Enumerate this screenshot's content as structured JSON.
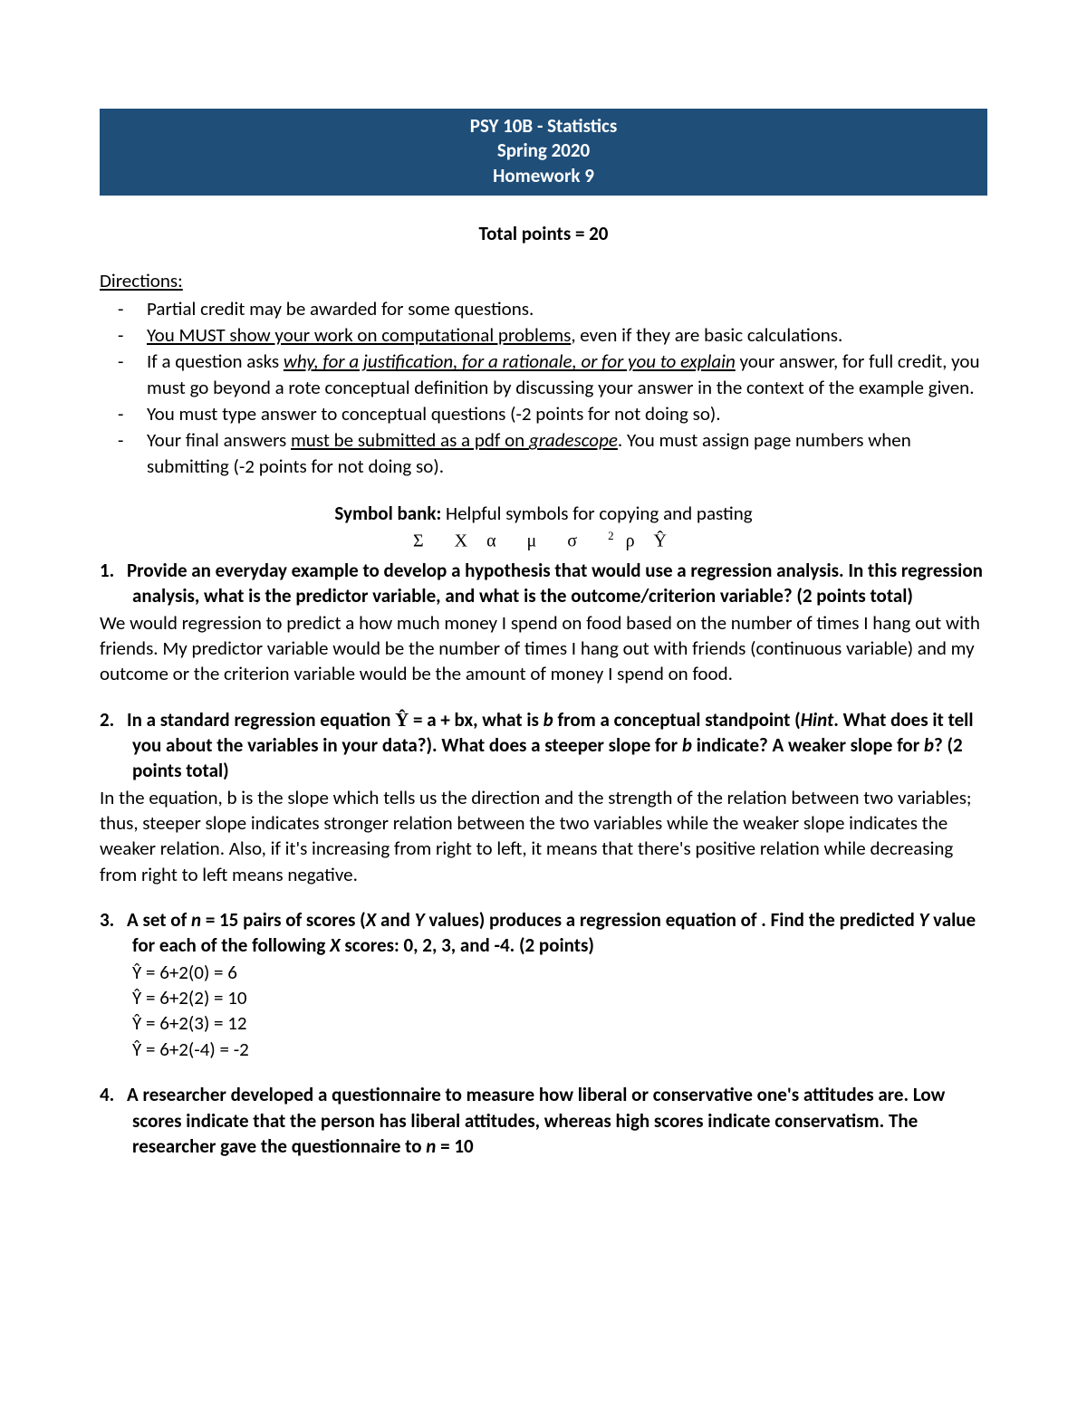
{
  "header": {
    "line1": "PSY 10B - Statistics",
    "line2": "Spring 2020",
    "line3": "Homework 9",
    "bg_color": "#1f4e79",
    "text_color": "#ffffff"
  },
  "total_points": "Total points = 20",
  "directions_heading": "Directions:",
  "directions": [
    {
      "html": "Partial credit may be awarded for some questions."
    },
    {
      "html": "<span class='u'>You MUST show your work on computational problems</span>, even if they are basic calculations."
    },
    {
      "html": "If a question asks <span class='iu'>why, for a justification, for a rationale, or for you to explain</span> your answer, for full credit, you must go beyond a rote conceptual definition by discussing your answer in the context of the example given."
    },
    {
      "html": "You must type answer to conceptual questions (-2 points for not doing so)."
    },
    {
      "html": "Your final answers <span class='u'>must be submitted as a pdf on <span class='i'>gradescope</span></span>. You must assign page numbers when submitting (-2 points for not doing so)."
    }
  ],
  "symbol_bank": {
    "label_bold": "Symbol bank:",
    "label_rest": " Helpful symbols for copying and pasting",
    "symbols_html": "Σ&nbsp;&nbsp;X&nbsp;α&nbsp;&nbsp;μ&nbsp;&nbsp;σ&nbsp;&nbsp;<span class='sup'>2</span>&nbsp;ρ&nbsp;Ŷ"
  },
  "q1": {
    "num": "1.",
    "prompt": "Provide an everyday example to develop a hypothesis that would use a regression analysis. In this regression analysis, what is the predictor variable, and what is the outcome/criterion variable? (2 points total)",
    "answer": "We would regression to predict a how much money I spend on food based on the number of times I hang out with friends. My predictor variable would be the number of times I hang out with friends (continuous variable) and my outcome or the criterion variable would be the amount of money I spend on food."
  },
  "q2": {
    "num": "2.",
    "prompt_html": "In a standard regression equation <span class='yhat'>Ŷ</span> = a + bx, what is <span class='i'>b</span> from a conceptual standpoint (<span class='i'>Hint</span>. What does it tell you about the variables in your data?). What does a steeper slope for <span class='i'>b</span> indicate? A weaker slope for <span class='i'>b</span>? (2 points total)",
    "answer": "In the equation, b is the slope which tells us the direction and the strength of the relation between two variables; thus, steeper slope indicates stronger relation between the two variables while the weaker slope indicates the weaker relation. Also, if it's increasing from right to left, it means that there's positive relation while decreasing from right to left means negative."
  },
  "q3": {
    "num": "3.",
    "prompt_html": "A set of <span class='i'>n</span> = 15 pairs of scores (<span class='i'>X</span> and <span class='i'>Y</span> values) produces a regression equation of . Find the predicted <span class='i'>Y</span> value for each of the following <span class='i'>X</span> scores: 0, 2, 3, and -4. (2 points)",
    "calc": [
      "Ŷ = 6+2(0) = 6",
      "Ŷ = 6+2(2) = 10",
      "Ŷ = 6+2(3) = 12",
      "Ŷ = 6+2(-4) = -2"
    ]
  },
  "q4": {
    "num": "4.",
    "prompt_html": "A researcher developed a questionnaire to measure how liberal or conservative one's attitudes are. Low scores indicate that the person has liberal attitudes, whereas high scores indicate conservatism. The researcher gave the questionnaire to <span class='i'>n</span> = 10"
  }
}
